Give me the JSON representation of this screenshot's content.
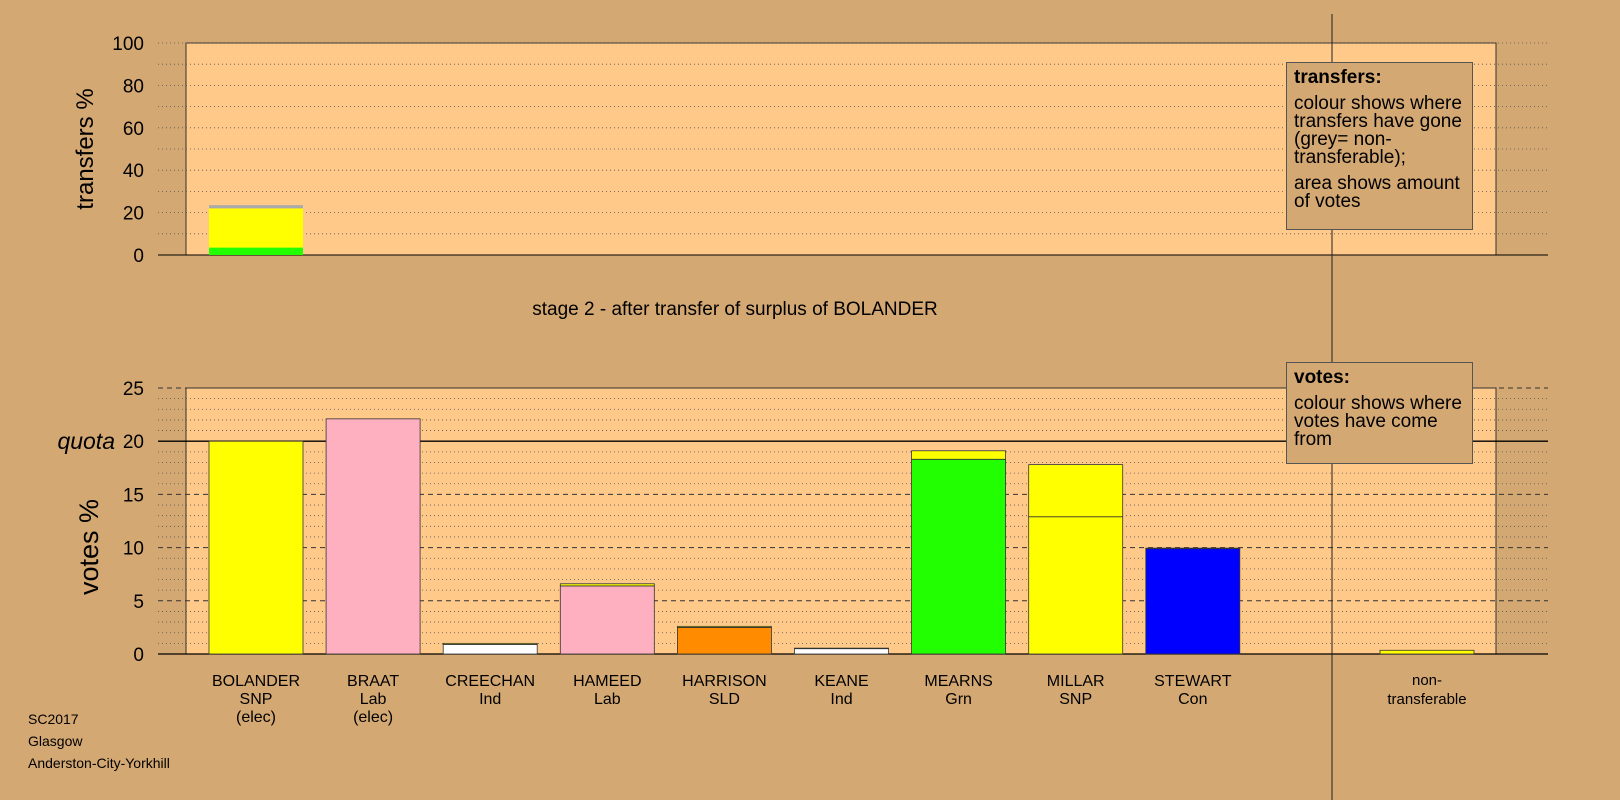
{
  "stage_title": "stage 2 - after transfer of surplus of BOLANDER",
  "legend_transfers": {
    "title": "transfers:",
    "para1": "colour shows where transfers have gone (grey= non-transferable);",
    "para2": "area shows amount of votes"
  },
  "legend_votes": {
    "title": "votes:",
    "para1": "colour shows where votes have come from"
  },
  "footer": {
    "line1": "SC2017",
    "line2": "Glasgow",
    "line3": "Anderston-City-Yorkhill"
  },
  "colors": {
    "background": "#d4a873",
    "plot_bg": "#ffc98a",
    "SNP": "#ffff00",
    "Lab": "#ffb0c0",
    "Ind": "#ffffff",
    "SLD": "#ff8c00",
    "Grn": "#22ff00",
    "Con": "#0000ff",
    "nontransferable": "#aaaaaa"
  },
  "chart_data": [
    {
      "type": "bar",
      "stacked": true,
      "ylabel": "transfers %",
      "ylim": [
        0,
        100
      ],
      "yticks": [
        0,
        20,
        40,
        60,
        80,
        100
      ],
      "bars": [
        {
          "name": "BOLANDER",
          "segments": [
            {
              "source": "Grn",
              "value": 3.5
            },
            {
              "source": "SNP",
              "value": 18.5
            },
            {
              "source": "non-transferable",
              "value": 1.5
            }
          ]
        }
      ]
    },
    {
      "type": "bar",
      "stacked": true,
      "ylabel": "votes %",
      "ylim": [
        0,
        25
      ],
      "yticks": [
        0,
        5,
        10,
        15,
        20,
        25
      ],
      "quota": 20,
      "quota_label": "quota",
      "candidates": [
        {
          "name": "BOLANDER",
          "party": "SNP",
          "status": "(elec)",
          "segments": [
            {
              "party": "SNP",
              "value": 20.0
            }
          ]
        },
        {
          "name": "BRAAT",
          "party": "Lab",
          "status": "(elec)",
          "segments": [
            {
              "party": "Lab",
              "value": 22.1
            }
          ]
        },
        {
          "name": "CREECHAN",
          "party": "Ind",
          "status": "",
          "segments": [
            {
              "party": "Ind",
              "value": 0.9
            },
            {
              "party": "SNP",
              "value": 0.1
            }
          ]
        },
        {
          "name": "HAMEED",
          "party": "Lab",
          "status": "",
          "segments": [
            {
              "party": "Lab",
              "value": 6.4
            },
            {
              "party": "SNP",
              "value": 0.2
            }
          ]
        },
        {
          "name": "HARRISON",
          "party": "SLD",
          "status": "",
          "segments": [
            {
              "party": "SLD",
              "value": 2.5
            },
            {
              "party": "SNP",
              "value": 0.1
            }
          ]
        },
        {
          "name": "KEANE",
          "party": "Ind",
          "status": "",
          "segments": [
            {
              "party": "Ind",
              "value": 0.5
            },
            {
              "party": "SNP",
              "value": 0.05
            }
          ]
        },
        {
          "name": "MEARNS",
          "party": "Grn",
          "status": "",
          "segments": [
            {
              "party": "Grn",
              "value": 18.3
            },
            {
              "party": "SNP",
              "value": 0.8
            }
          ]
        },
        {
          "name": "MILLAR",
          "party": "SNP",
          "status": "",
          "segments": [
            {
              "party": "SNP",
              "value": 12.9
            },
            {
              "party": "SNP",
              "value": 4.9
            }
          ]
        },
        {
          "name": "STEWART",
          "party": "Con",
          "status": "",
          "segments": [
            {
              "party": "Con",
              "value": 9.9
            },
            {
              "party": "SNP",
              "value": 0.05
            }
          ]
        }
      ],
      "nontransferable": {
        "label_line1": "non-",
        "label_line2": "transferable",
        "segments": [
          {
            "party": "SNP",
            "value": 0.35
          }
        ]
      }
    }
  ]
}
